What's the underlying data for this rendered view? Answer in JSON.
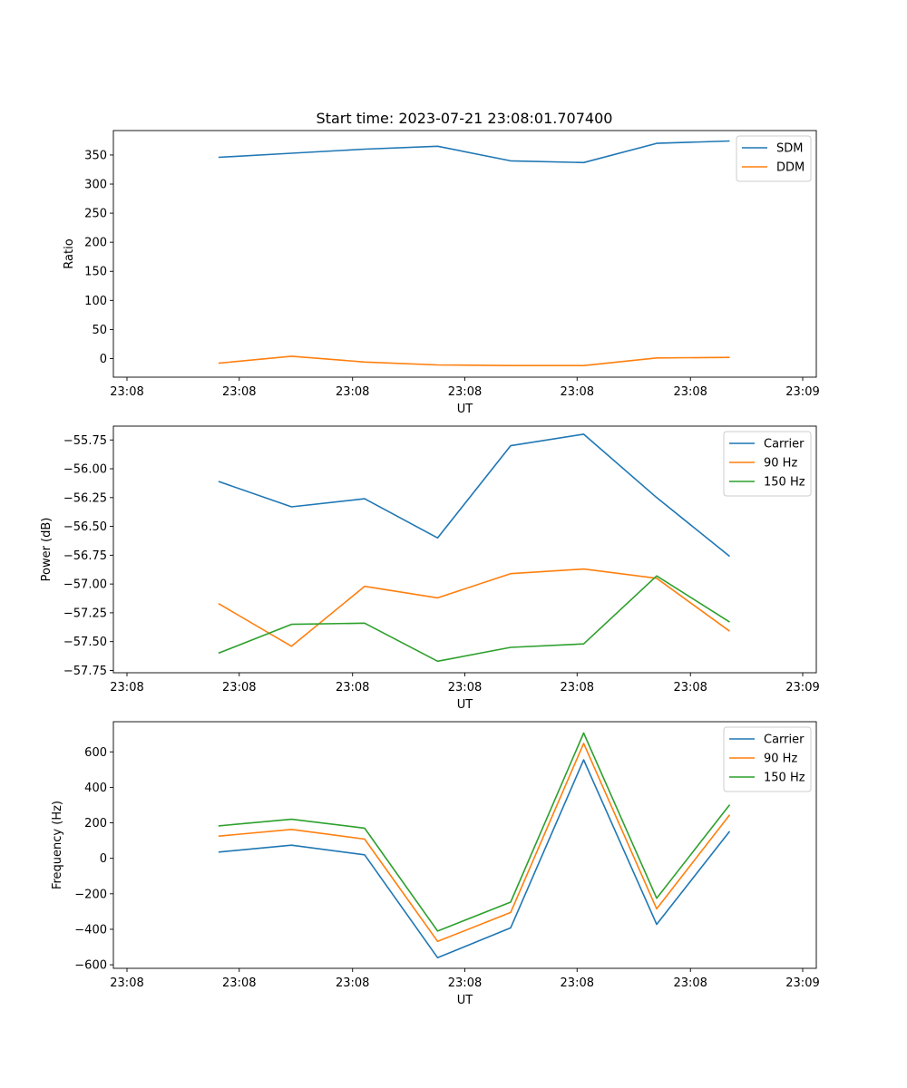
{
  "title": "Start time: 2023-07-21 23:08:01.707400",
  "chart_data": [
    {
      "type": "line",
      "id": "ratio",
      "xlabel": "UT",
      "ylabel": "Ratio",
      "x": [
        0.84,
        1.51,
        2.18,
        2.85,
        3.52,
        4.19,
        4.86,
        5.53
      ],
      "xlim": [
        0,
        6.2
      ],
      "xticks": [
        0.0,
        1.03,
        2.07,
        3.1,
        4.13,
        5.17,
        6.2
      ],
      "xtick_labels": [
        "23:08",
        "23:08",
        "23:08",
        "23:08",
        "23:08",
        "23:08",
        "23:09"
      ],
      "ylim": [
        -32,
        392
      ],
      "yticks": [
        0,
        50,
        100,
        150,
        200,
        250,
        300,
        350
      ],
      "ytick_labels": [
        "0",
        "50",
        "100",
        "150",
        "200",
        "250",
        "300",
        "350"
      ],
      "legend": "top-right",
      "series": [
        {
          "name": "SDM",
          "color": "#1f77b4",
          "values": [
            346,
            353,
            360,
            365,
            340,
            337,
            370,
            374
          ]
        },
        {
          "name": "DDM",
          "color": "#ff7f0e",
          "values": [
            -8,
            4,
            -6,
            -11,
            -12,
            -12,
            1,
            2
          ]
        }
      ]
    },
    {
      "type": "line",
      "id": "power",
      "xlabel": "UT",
      "ylabel": "Power (dB)",
      "x": [
        0.84,
        1.51,
        2.18,
        2.85,
        3.52,
        4.19,
        4.86,
        5.53
      ],
      "xlim": [
        0,
        6.2
      ],
      "xticks": [
        0.0,
        1.03,
        2.07,
        3.1,
        4.13,
        5.17,
        6.2
      ],
      "xtick_labels": [
        "23:08",
        "23:08",
        "23:08",
        "23:08",
        "23:08",
        "23:08",
        "23:09"
      ],
      "ylim": [
        -57.77,
        -55.63
      ],
      "yticks": [
        -57.75,
        -57.5,
        -57.25,
        -57.0,
        -56.75,
        -56.5,
        -56.25,
        -56.0,
        -55.75
      ],
      "ytick_labels": [
        "−57.75",
        "−57.50",
        "−57.25",
        "−57.00",
        "−56.75",
        "−56.50",
        "−56.25",
        "−56.00",
        "−55.75"
      ],
      "legend": "top-right",
      "series": [
        {
          "name": "Carrier",
          "color": "#1f77b4",
          "values": [
            -56.11,
            -56.33,
            -56.26,
            -56.6,
            -55.8,
            -55.7,
            -56.25,
            -56.76
          ]
        },
        {
          "name": "90 Hz",
          "color": "#ff7f0e",
          "values": [
            -57.17,
            -57.54,
            -57.02,
            -57.12,
            -56.91,
            -56.87,
            -56.95,
            -57.41
          ]
        },
        {
          "name": "150 Hz",
          "color": "#2ca02c",
          "values": [
            -57.6,
            -57.35,
            -57.34,
            -57.67,
            -57.55,
            -57.52,
            -56.93,
            -57.33
          ]
        }
      ]
    },
    {
      "type": "line",
      "id": "frequency",
      "xlabel": "UT",
      "ylabel": "Frequency (Hz)",
      "x": [
        0.84,
        1.51,
        2.18,
        2.85,
        3.52,
        4.19,
        4.86,
        5.53
      ],
      "xlim": [
        0,
        6.2
      ],
      "xticks": [
        0.0,
        1.03,
        2.07,
        3.1,
        4.13,
        5.17,
        6.2
      ],
      "xtick_labels": [
        "23:08",
        "23:08",
        "23:08",
        "23:08",
        "23:08",
        "23:08",
        "23:09"
      ],
      "ylim": [
        -620,
        770
      ],
      "yticks": [
        -600,
        -400,
        -200,
        0,
        200,
        400,
        600
      ],
      "ytick_labels": [
        "−600",
        "−400",
        "−200",
        "0",
        "200",
        "400",
        "600"
      ],
      "legend": "top-right",
      "series": [
        {
          "name": "Carrier",
          "color": "#1f77b4",
          "values": [
            35,
            74,
            20,
            -560,
            -392,
            555,
            -372,
            152
          ]
        },
        {
          "name": "90 Hz",
          "color": "#ff7f0e",
          "values": [
            125,
            163,
            108,
            -468,
            -305,
            648,
            -285,
            245
          ]
        },
        {
          "name": "150 Hz",
          "color": "#2ca02c",
          "values": [
            183,
            220,
            170,
            -410,
            -247,
            706,
            -225,
            302
          ]
        }
      ]
    }
  ]
}
